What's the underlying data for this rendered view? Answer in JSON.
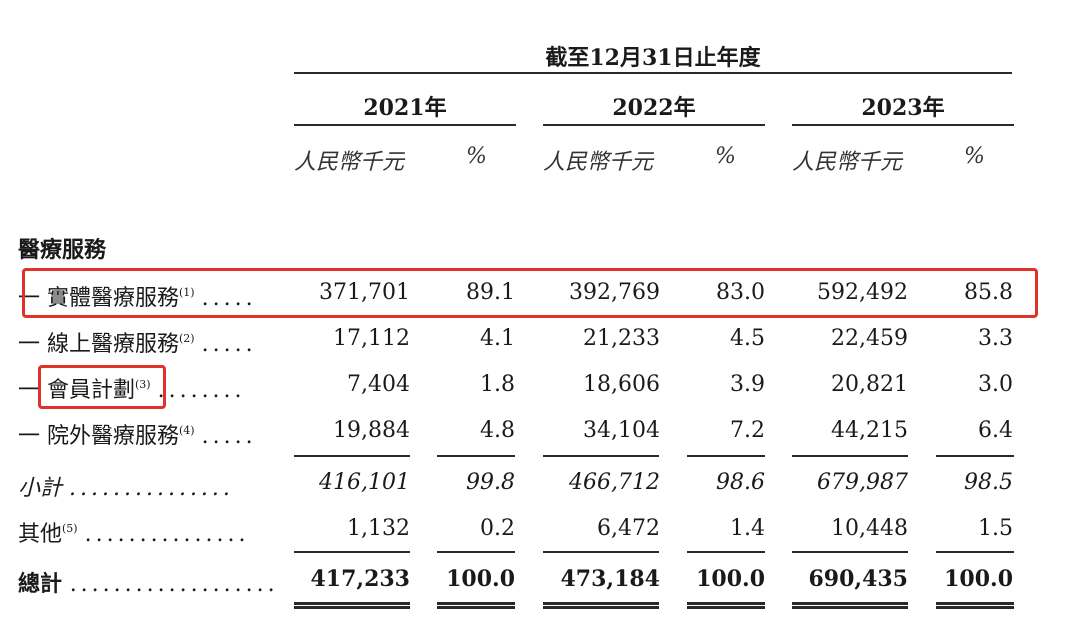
{
  "header": {
    "period": "截至12月31日止年度",
    "years": [
      "2021年",
      "2022年",
      "2023年"
    ],
    "unit_currency": "人民幣千元",
    "unit_percent": "%"
  },
  "section_title": "醫療服務",
  "rows": [
    {
      "label": "一 實體醫療服務",
      "note": "(1)",
      "dots": ".....",
      "v2021": "371,701",
      "p2021": "89.1",
      "v2022": "392,769",
      "p2022": "83.0",
      "v2023": "592,492",
      "p2023": "85.8"
    },
    {
      "label": "一 線上醫療服務",
      "note": "(2)",
      "dots": ".....",
      "v2021": "17,112",
      "p2021": "4.1",
      "v2022": "21,233",
      "p2022": "4.5",
      "v2023": "22,459",
      "p2023": "3.3"
    },
    {
      "label": "一 會員計劃",
      "note": "(3)",
      "dots": "........",
      "v2021": "7,404",
      "p2021": "1.8",
      "v2022": "18,606",
      "p2022": "3.9",
      "v2023": "20,821",
      "p2023": "3.0"
    },
    {
      "label": "一 院外醫療服務",
      "note": "(4)",
      "dots": ".....",
      "v2021": "19,884",
      "p2021": "4.8",
      "v2022": "34,104",
      "p2022": "7.2",
      "v2023": "44,215",
      "p2023": "6.4"
    }
  ],
  "subtotal": {
    "label": "小計",
    "dots": "...............",
    "v2021": "416,101",
    "p2021": "99.8",
    "v2022": "466,712",
    "p2022": "98.6",
    "v2023": "679,987",
    "p2023": "98.5"
  },
  "other": {
    "label": "其他",
    "note": "(5)",
    "dots": "...............",
    "v2021": "1,132",
    "p2021": "0.2",
    "v2022": "6,472",
    "p2022": "1.4",
    "v2023": "10,448",
    "p2023": "1.5"
  },
  "total": {
    "label": "總計",
    "dots": "...................",
    "v2021": "417,233",
    "p2021": "100.0",
    "v2022": "473,184",
    "p2022": "100.0",
    "v2023": "690,435",
    "p2023": "100.0"
  },
  "colors": {
    "highlight": "#e0312b",
    "text": "#1a1a1a"
  }
}
